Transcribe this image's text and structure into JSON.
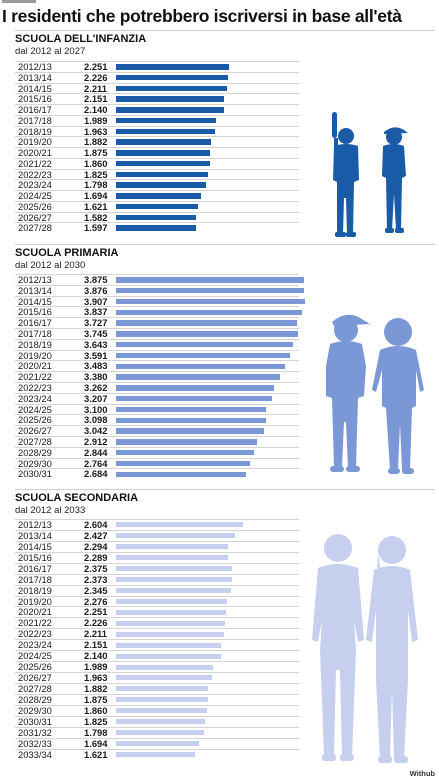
{
  "headline": "I residenti che potrebbero iscriversi in base all'età",
  "credit": "Withub",
  "colors": {
    "infanzia": "#1a5ba7",
    "primaria": "#7b98d6",
    "secondaria": "#c6d0ee"
  },
  "chart_data": [
    {
      "type": "bar",
      "title": "SCUOLA DELL'INFANZIA",
      "subtitle": "dal 2012 al 2027",
      "color": "#1a5ba7",
      "categories": [
        "2012/13",
        "2013/14",
        "2014/15",
        "2015/16",
        "2016/17",
        "2017/18",
        "2018/19",
        "2019/20",
        "2020/21",
        "2021/22",
        "2022/23",
        "2023/24",
        "2024/25",
        "2025/26",
        "2026/27",
        "2027/28"
      ],
      "labels": [
        "2.251",
        "2.226",
        "2.211",
        "2.151",
        "2.140",
        "1.989",
        "1.963",
        "1.882",
        "1.875",
        "1.860",
        "1.825",
        "1.798",
        "1.694",
        "1.621",
        "1.582",
        "1.597"
      ],
      "values": [
        2251,
        2226,
        2211,
        2151,
        2140,
        1989,
        1963,
        1882,
        1875,
        1860,
        1825,
        1798,
        1694,
        1621,
        1582,
        1597
      ]
    },
    {
      "type": "bar",
      "title": "SCUOLA PRIMARIA",
      "subtitle": "dal 2012 al 2030",
      "color": "#7b98d6",
      "categories": [
        "2012/13",
        "2013/14",
        "2014/15",
        "2015/16",
        "2016/17",
        "2017/18",
        "2018/19",
        "2019/20",
        "2020/21",
        "2021/22",
        "2022/23",
        "2023/24",
        "2024/25",
        "2025/26",
        "2026/27",
        "2027/28",
        "2028/29",
        "2029/30",
        "2030/31"
      ],
      "labels": [
        "3.875",
        "3.876",
        "3.907",
        "3.837",
        "3.727",
        "3.745",
        "3.643",
        "3.591",
        "3.483",
        "3.380",
        "3.262",
        "3.207",
        "3.100",
        "3.098",
        "3.042",
        "2.912",
        "2.844",
        "2.764",
        "2.684"
      ],
      "values": [
        3875,
        3876,
        3907,
        3837,
        3727,
        3745,
        3643,
        3591,
        3483,
        3380,
        3262,
        3207,
        3100,
        3098,
        3042,
        2912,
        2844,
        2764,
        2684
      ]
    },
    {
      "type": "bar",
      "title": "SCUOLA SECONDARIA",
      "subtitle": "dal 2012 al 2033",
      "color": "#c6d0ee",
      "categories": [
        "2012/13",
        "2013/14",
        "2014/15",
        "2015/16",
        "2016/17",
        "2017/18",
        "2018/19",
        "2019/20",
        "2020/21",
        "2021/22",
        "2022/23",
        "2023/24",
        "2024/25",
        "2025/26",
        "2026/27",
        "2027/28",
        "2028/29",
        "2029/30",
        "2030/31",
        "2031/32",
        "2032/33",
        "2033/34"
      ],
      "labels": [
        "2.604",
        "2.427",
        "2.294",
        "2.289",
        "2.375",
        "2.373",
        "2.345",
        "2.276",
        "2.251",
        "2.226",
        "2.211",
        "2.151",
        "2.140",
        "1.989",
        "1.963",
        "1.882",
        "1.875",
        "1.860",
        "1.825",
        "1.798",
        "1.694",
        "1.621"
      ],
      "values": [
        2604,
        2427,
        2294,
        2289,
        2375,
        2373,
        2345,
        2276,
        2251,
        2226,
        2211,
        2151,
        2140,
        1989,
        1963,
        1882,
        1875,
        1860,
        1825,
        1798,
        1694,
        1621
      ]
    }
  ]
}
